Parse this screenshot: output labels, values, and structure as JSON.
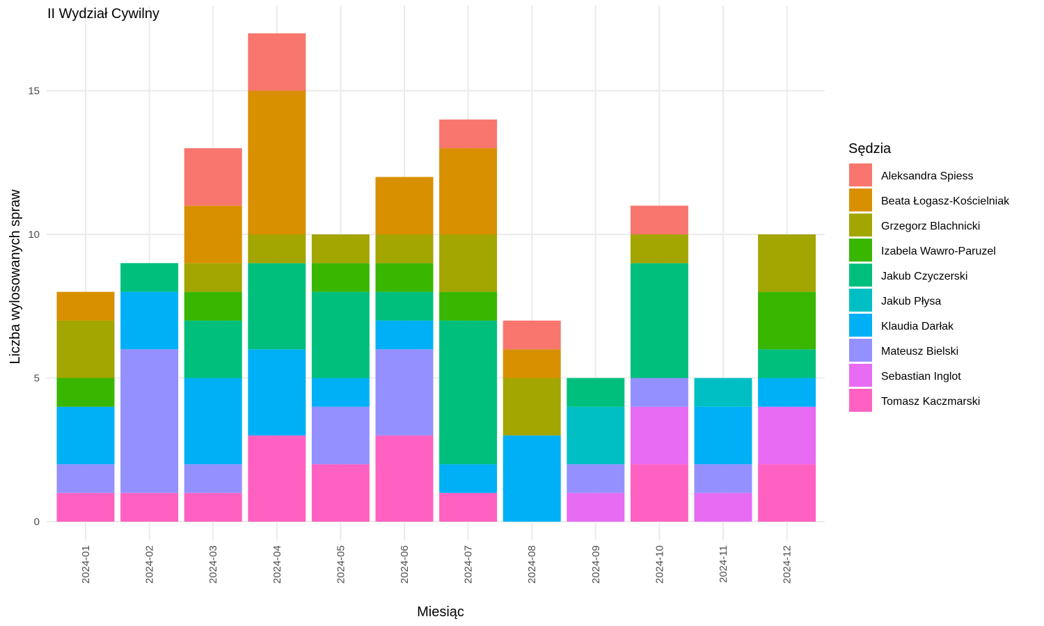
{
  "chart_data": {
    "type": "bar",
    "stacked": true,
    "title": "II Wydział Cywilny",
    "xlabel": "Miesiąc",
    "ylabel": "Liczba wylosowanych spraw",
    "ylim": [
      0,
      17.8
    ],
    "yticks": [
      0,
      5,
      10,
      15
    ],
    "grid": true,
    "legend_title": "Sędzia",
    "legend_position": "right",
    "categories": [
      "2024-01",
      "2024-02",
      "2024-03",
      "2024-04",
      "2024-05",
      "2024-06",
      "2024-07",
      "2024-08",
      "2024-09",
      "2024-10",
      "2024-11",
      "2024-12"
    ],
    "series": [
      {
        "name": "Tomasz Kaczmarski",
        "color": "#FF61C3",
        "values": [
          1,
          1,
          1,
          3,
          2,
          3,
          1,
          0,
          0,
          2,
          0,
          2
        ]
      },
      {
        "name": "Sebastian Inglot",
        "color": "#E76BF3",
        "values": [
          0,
          0,
          0,
          0,
          0,
          0,
          0,
          0,
          1,
          2,
          1,
          2
        ]
      },
      {
        "name": "Mateusz Bielski",
        "color": "#9590FF",
        "values": [
          1,
          5,
          1,
          0,
          2,
          3,
          0,
          0,
          1,
          1,
          1,
          0
        ]
      },
      {
        "name": "Klaudia Darłak",
        "color": "#00B0F6",
        "values": [
          2,
          2,
          3,
          3,
          1,
          1,
          1,
          3,
          0,
          0,
          2,
          1
        ]
      },
      {
        "name": "Jakub Płysa",
        "color": "#00BFC4",
        "values": [
          0,
          0,
          0,
          0,
          0,
          0,
          0,
          0,
          2,
          0,
          1,
          0
        ]
      },
      {
        "name": "Jakub Czyczerski",
        "color": "#00BF7D",
        "values": [
          0,
          1,
          2,
          3,
          3,
          1,
          5,
          0,
          1,
          4,
          0,
          1
        ]
      },
      {
        "name": "Izabela Wawro-Paruzel",
        "color": "#39B600",
        "values": [
          1,
          0,
          1,
          0,
          1,
          1,
          1,
          0,
          0,
          0,
          0,
          2
        ]
      },
      {
        "name": "Grzegorz Blachnicki",
        "color": "#A3A500",
        "values": [
          2,
          0,
          1,
          1,
          1,
          1,
          2,
          2,
          0,
          1,
          0,
          2
        ]
      },
      {
        "name": "Beata Łogasz-Kościelniak",
        "color": "#D89000",
        "values": [
          1,
          0,
          2,
          5,
          0,
          2,
          3,
          1,
          0,
          0,
          0,
          0
        ]
      },
      {
        "name": "Aleksandra Spiess",
        "color": "#F8766D",
        "values": [
          0,
          0,
          2,
          2,
          0,
          0,
          1,
          1,
          0,
          1,
          0,
          0
        ]
      }
    ],
    "legend_order": [
      "Aleksandra Spiess",
      "Beata Łogasz-Kościelniak",
      "Grzegorz Blachnicki",
      "Izabela Wawro-Paruzel",
      "Jakub Czyczerski",
      "Jakub Płysa",
      "Klaudia Darłak",
      "Mateusz Bielski",
      "Sebastian Inglot",
      "Tomasz Kaczmarski"
    ]
  }
}
